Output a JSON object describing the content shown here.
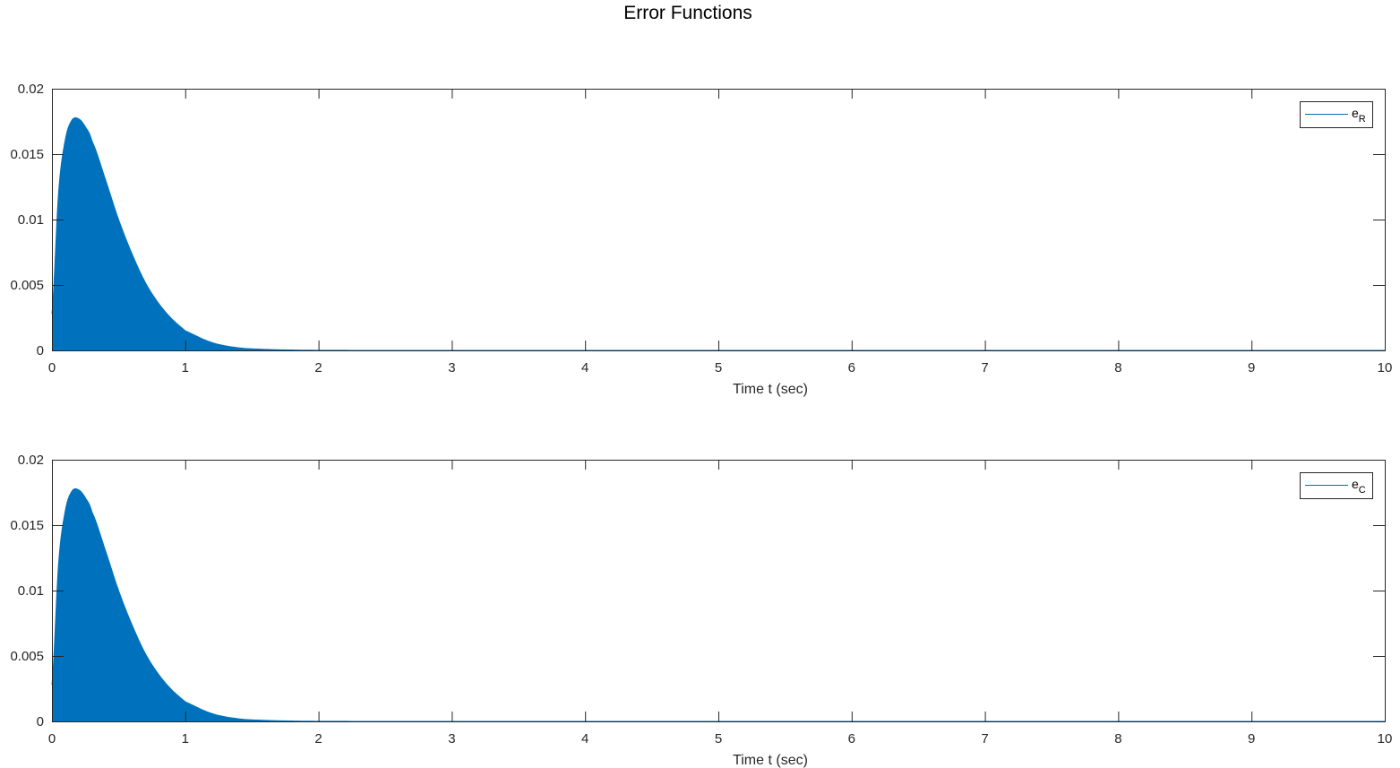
{
  "title": "Error Functions",
  "colors": {
    "series": "#0072BD",
    "axes": "#262626",
    "background": "#FFFFFF"
  },
  "chart_data": [
    {
      "type": "area",
      "title": "",
      "xlabel": "Time t (sec)",
      "ylabel": "",
      "xlim": [
        0,
        10
      ],
      "ylim": [
        0,
        0.02
      ],
      "xticks": [
        0,
        1,
        2,
        3,
        4,
        5,
        6,
        7,
        8,
        9,
        10
      ],
      "xtick_labels": [
        "0",
        "1",
        "2",
        "3",
        "4",
        "5",
        "6",
        "7",
        "8",
        "9",
        "10"
      ],
      "yticks": [
        0,
        0.005,
        0.01,
        0.015,
        0.02
      ],
      "ytick_labels": [
        "0",
        "0.005",
        "0.01",
        "0.015",
        "0.02"
      ],
      "grid": false,
      "legend_position": "top-right",
      "series": [
        {
          "name": "e_R",
          "legend_base": "e",
          "legend_sub": "R",
          "x": [
            0,
            0.05,
            0.1,
            0.15,
            0.2,
            0.25,
            0.3,
            0.4,
            0.5,
            0.6,
            0.7,
            0.8,
            0.9,
            1.0,
            1.2,
            1.4,
            1.6,
            1.8,
            2.0,
            2.5,
            3,
            4,
            5,
            6,
            7,
            8,
            9,
            10
          ],
          "y": [
            0.0028,
            0.0121,
            0.0161,
            0.0176,
            0.0177,
            0.0171,
            0.016,
            0.0131,
            0.01,
            0.0074,
            0.0052,
            0.0036,
            0.0024,
            0.0015,
            0.0006,
            0.0002,
            8e-05,
            3e-05,
            1e-05,
            0,
            0,
            0,
            0,
            0,
            0,
            0,
            0,
            0
          ]
        }
      ]
    },
    {
      "type": "area",
      "title": "",
      "xlabel": "Time t (sec)",
      "ylabel": "",
      "xlim": [
        0,
        10
      ],
      "ylim": [
        0,
        0.02
      ],
      "xticks": [
        0,
        1,
        2,
        3,
        4,
        5,
        6,
        7,
        8,
        9,
        10
      ],
      "xtick_labels": [
        "0",
        "1",
        "2",
        "3",
        "4",
        "5",
        "6",
        "7",
        "8",
        "9",
        "10"
      ],
      "yticks": [
        0,
        0.005,
        0.01,
        0.015,
        0.02
      ],
      "ytick_labels": [
        "0",
        "0.005",
        "0.01",
        "0.015",
        "0.02"
      ],
      "grid": false,
      "legend_position": "top-right",
      "series": [
        {
          "name": "e_C",
          "legend_base": "e",
          "legend_sub": "C",
          "x": [
            0,
            0.05,
            0.1,
            0.15,
            0.2,
            0.25,
            0.3,
            0.4,
            0.5,
            0.6,
            0.7,
            0.8,
            0.9,
            1.0,
            1.2,
            1.4,
            1.6,
            1.8,
            2.0,
            2.5,
            3,
            4,
            5,
            6,
            7,
            8,
            9,
            10
          ],
          "y": [
            0.0028,
            0.0121,
            0.0161,
            0.0176,
            0.0177,
            0.0171,
            0.016,
            0.0131,
            0.01,
            0.0074,
            0.0052,
            0.0036,
            0.0024,
            0.0015,
            0.0006,
            0.0002,
            8e-05,
            3e-05,
            1e-05,
            0,
            0,
            0,
            0,
            0,
            0,
            0,
            0,
            0
          ]
        }
      ]
    }
  ]
}
